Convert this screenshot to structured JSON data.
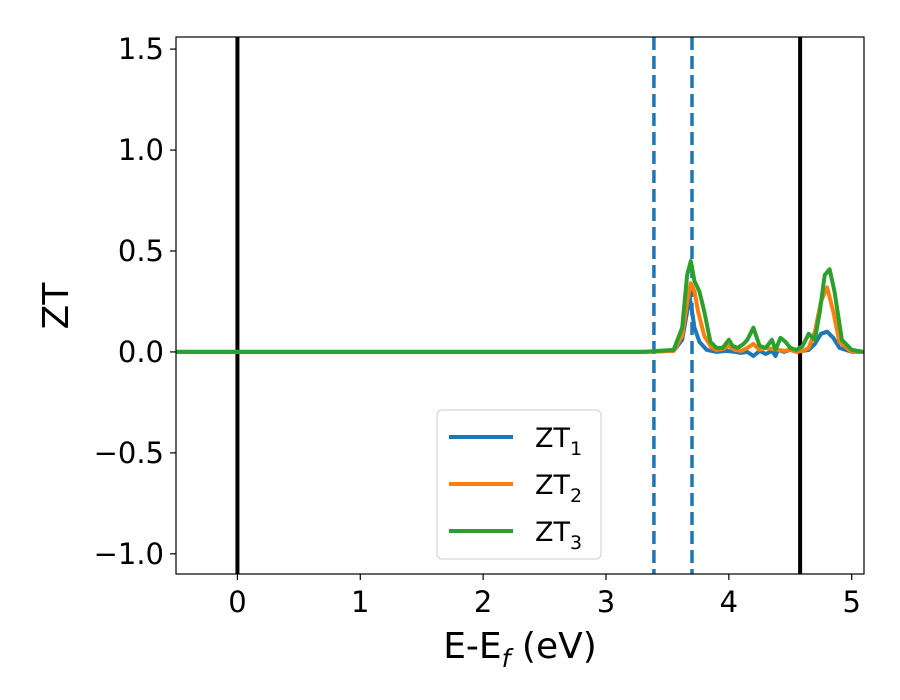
{
  "chart_data": {
    "type": "line",
    "xlabel": "E-E",
    "xlabel_sub": "f",
    "xlabel_unit": " (eV)",
    "ylabel": "ZT",
    "xlim": [
      -0.5,
      5.1
    ],
    "ylim": [
      -1.1,
      1.56
    ],
    "xticks": [
      0,
      1,
      2,
      3,
      4,
      5
    ],
    "xtick_labels": [
      "0",
      "1",
      "2",
      "3",
      "4",
      "5"
    ],
    "yticks": [
      -1.0,
      -0.5,
      0.0,
      0.5,
      1.0,
      1.5
    ],
    "ytick_labels": [
      "−1.0",
      "−0.5",
      "0.0",
      "0.5",
      "1.0",
      "1.5"
    ],
    "grid": false,
    "legend_position": "lower-center",
    "vlines": [
      {
        "x": 0.0,
        "style": "solid",
        "color": "#000000"
      },
      {
        "x": 4.58,
        "style": "solid",
        "color": "#000000"
      },
      {
        "x": 3.39,
        "style": "dashed",
        "color": "#1f77b4"
      },
      {
        "x": 3.7,
        "style": "dashed",
        "color": "#1f77b4"
      }
    ],
    "series": [
      {
        "name": "ZT",
        "sub": "1",
        "color": "#1f77b4",
        "x": [
          -0.5,
          3.3,
          3.55,
          3.62,
          3.66,
          3.68,
          3.7,
          3.72,
          3.76,
          3.82,
          3.9,
          3.98,
          4.05,
          4.1,
          4.15,
          4.2,
          4.25,
          4.3,
          4.35,
          4.38,
          4.4,
          4.45,
          4.5,
          4.55,
          4.6,
          4.65,
          4.7,
          4.75,
          4.8,
          4.85,
          4.9,
          5.0,
          5.1
        ],
        "y": [
          0.0,
          0.0,
          0.005,
          0.06,
          0.2,
          0.28,
          0.2,
          0.12,
          0.05,
          0.01,
          0.0,
          0.005,
          0.0,
          -0.005,
          0.0,
          -0.02,
          0.005,
          -0.01,
          0.005,
          -0.02,
          0.01,
          0.0,
          0.01,
          0.0,
          0.005,
          0.01,
          0.04,
          0.09,
          0.1,
          0.07,
          0.02,
          0.0,
          0.0
        ]
      },
      {
        "name": "ZT",
        "sub": "2",
        "color": "#ff7f0e",
        "x": [
          -0.5,
          3.3,
          3.55,
          3.62,
          3.66,
          3.69,
          3.72,
          3.75,
          3.8,
          3.86,
          3.9,
          3.95,
          4.0,
          4.05,
          4.1,
          4.15,
          4.2,
          4.25,
          4.3,
          4.35,
          4.4,
          4.45,
          4.5,
          4.55,
          4.6,
          4.65,
          4.7,
          4.75,
          4.8,
          4.85,
          4.9,
          5.0,
          5.1
        ],
        "y": [
          0.0,
          0.0,
          0.005,
          0.08,
          0.25,
          0.34,
          0.3,
          0.2,
          0.08,
          0.02,
          0.01,
          0.015,
          0.03,
          0.01,
          0.005,
          0.02,
          0.04,
          0.01,
          0.02,
          0.015,
          0.01,
          0.005,
          0.01,
          0.0,
          0.005,
          0.02,
          0.1,
          0.25,
          0.32,
          0.2,
          0.05,
          0.0,
          0.0
        ]
      },
      {
        "name": "ZT",
        "sub": "3",
        "color": "#2ca02c",
        "x": [
          -0.5,
          3.3,
          3.55,
          3.62,
          3.66,
          3.69,
          3.72,
          3.76,
          3.8,
          3.85,
          3.9,
          3.95,
          4.0,
          4.03,
          4.07,
          4.12,
          4.15,
          4.2,
          4.25,
          4.3,
          4.35,
          4.38,
          4.42,
          4.46,
          4.5,
          4.55,
          4.6,
          4.65,
          4.7,
          4.74,
          4.78,
          4.82,
          4.86,
          4.92,
          5.0,
          5.1
        ],
        "y": [
          0.0,
          0.0,
          0.01,
          0.12,
          0.38,
          0.45,
          0.35,
          0.3,
          0.2,
          0.05,
          0.02,
          0.02,
          0.06,
          0.03,
          0.02,
          0.04,
          0.06,
          0.12,
          0.03,
          0.02,
          0.06,
          0.01,
          0.07,
          0.05,
          0.02,
          0.01,
          0.03,
          0.09,
          0.06,
          0.2,
          0.38,
          0.41,
          0.3,
          0.06,
          0.01,
          0.0
        ]
      }
    ]
  }
}
